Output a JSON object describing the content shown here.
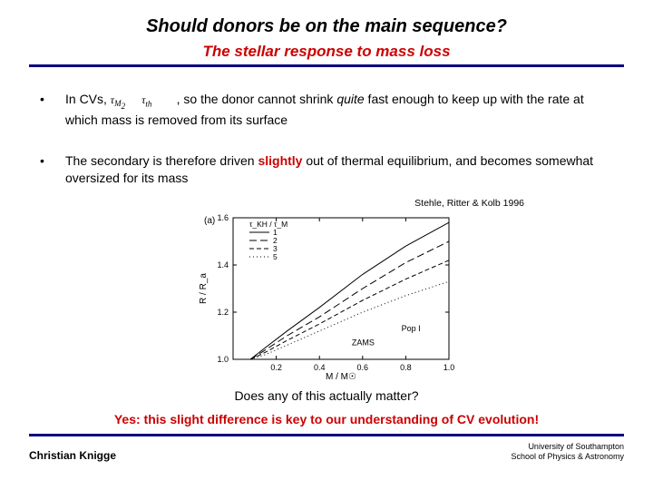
{
  "title": "Should donors be on the main sequence?",
  "subtitle": "The stellar response to mass loss",
  "bullets": {
    "b1": {
      "pre": "In CVs, ",
      "math_html": "τ<sub>M</sub> &nbsp;&nbsp;τ<sub>th</sub>",
      "post1": ", so the donor cannot shrink ",
      "quite": "quite",
      "post2": " fast enough to keep up with the rate at which mass is removed from its surface"
    },
    "b2": {
      "pre": "The secondary is therefore driven ",
      "slightly": "slightly",
      "post": " out of thermal equilibrium, and becomes somewhat oversized for its mass"
    }
  },
  "citation": "Stehle, Ritter & Kolb 1996",
  "chart": {
    "panel_label": "(a)",
    "xlabel": "M / M☉",
    "ylabel": "R / R_a",
    "xlim": [
      0,
      1.0
    ],
    "ylim": [
      1.0,
      1.6
    ],
    "xticks": [
      0.2,
      0.4,
      0.6,
      0.8,
      1.0
    ],
    "yticks": [
      1.0,
      1.2,
      1.4,
      1.6
    ],
    "legend_title": "τ_KH / τ_M",
    "legend_items": [
      "1",
      "2",
      "3",
      "5"
    ],
    "legend_styles": [
      "solid",
      "dash-long",
      "dash",
      "dot"
    ],
    "annotations": [
      "ZAMS",
      "Pop I"
    ],
    "zams_line": [
      [
        0.08,
        1.0
      ],
      [
        1.0,
        1.0
      ]
    ],
    "curves": {
      "1": [
        [
          0.08,
          1.0
        ],
        [
          0.15,
          1.05
        ],
        [
          0.25,
          1.12
        ],
        [
          0.4,
          1.22
        ],
        [
          0.6,
          1.36
        ],
        [
          0.8,
          1.48
        ],
        [
          1.0,
          1.58
        ]
      ],
      "2": [
        [
          0.08,
          1.0
        ],
        [
          0.15,
          1.04
        ],
        [
          0.25,
          1.1
        ],
        [
          0.4,
          1.18
        ],
        [
          0.6,
          1.3
        ],
        [
          0.8,
          1.41
        ],
        [
          1.0,
          1.5
        ]
      ],
      "3": [
        [
          0.08,
          1.0
        ],
        [
          0.15,
          1.03
        ],
        [
          0.25,
          1.08
        ],
        [
          0.4,
          1.15
        ],
        [
          0.6,
          1.25
        ],
        [
          0.8,
          1.34
        ],
        [
          1.0,
          1.42
        ]
      ],
      "5": [
        [
          0.08,
          1.0
        ],
        [
          0.15,
          1.02
        ],
        [
          0.25,
          1.06
        ],
        [
          0.4,
          1.12
        ],
        [
          0.6,
          1.2
        ],
        [
          0.8,
          1.27
        ],
        [
          1.0,
          1.33
        ]
      ]
    },
    "line_color": "#000000",
    "background_color": "#ffffff",
    "font_size_axis": 9
  },
  "closing_q": "Does any of this actually matter?",
  "closing_a": "Yes: this slight difference is key to our understanding of CV evolution!",
  "footer": {
    "left": "Christian Knigge",
    "right1": "University of Southampton",
    "right2": "School of Physics & Astronomy"
  },
  "colors": {
    "accent_red": "#cc0000",
    "rule_blue": "#000080"
  }
}
